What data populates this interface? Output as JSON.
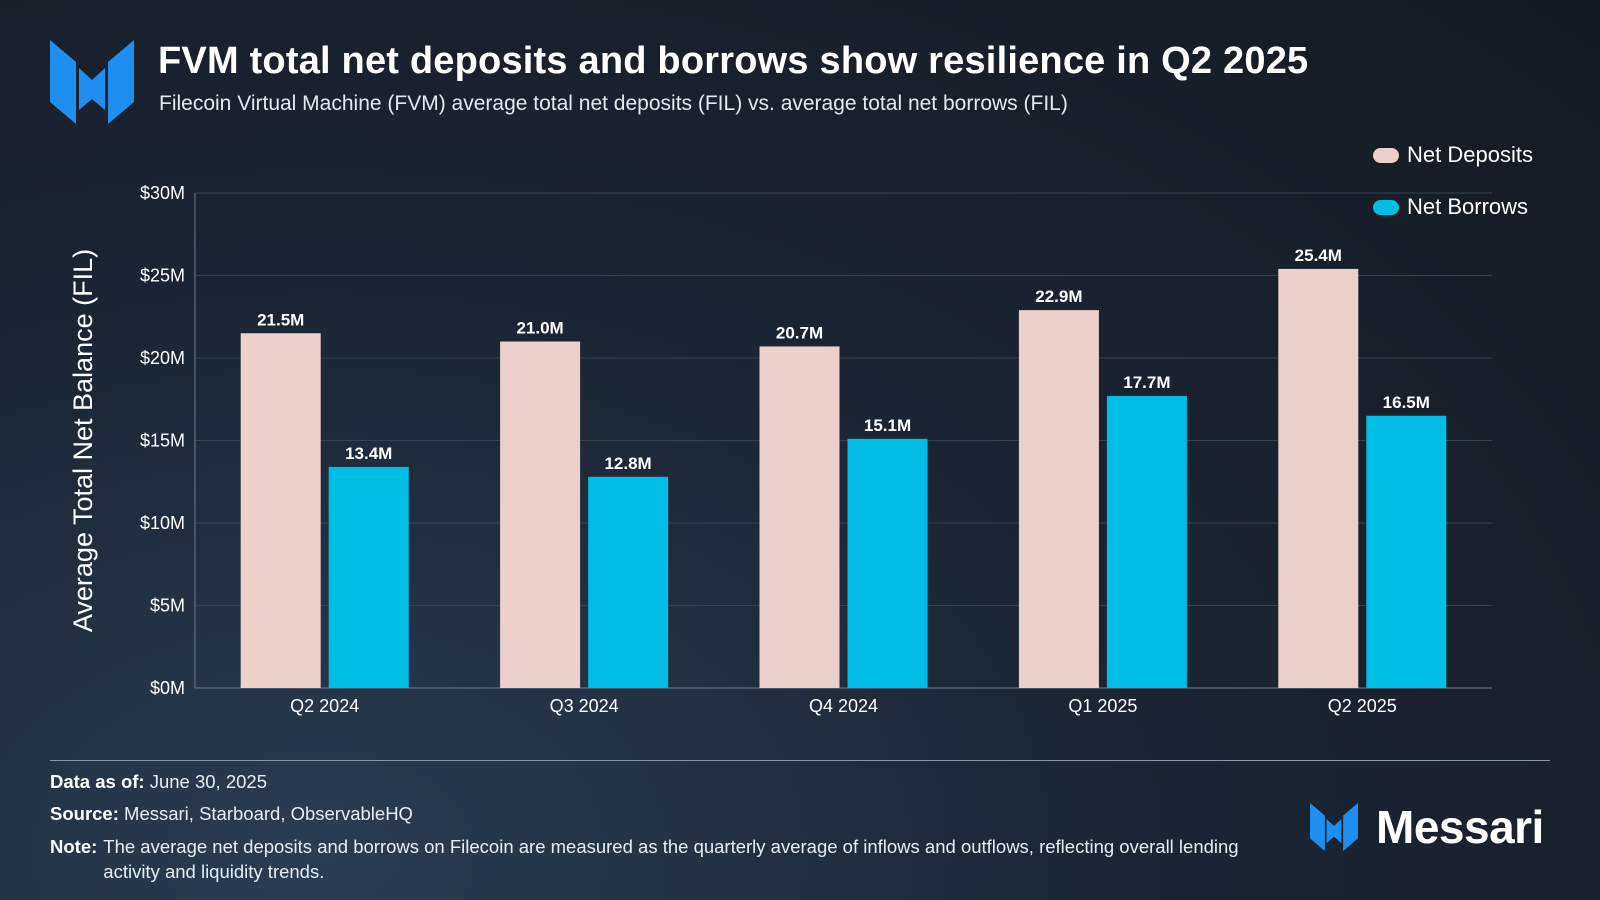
{
  "header": {
    "title": "FVM total net deposits and borrows show resilience in Q2 2025",
    "subtitle": "Filecoin Virtual Machine (FVM) average total net deposits (FIL) vs. average total net borrows (FIL)"
  },
  "legend": {
    "items": [
      {
        "label": "Net Deposits",
        "color": "#ecd0cb"
      },
      {
        "label": "Net Borrows",
        "color": "#00bde6"
      }
    ]
  },
  "colors": {
    "brand_blue": "#1f8ef1",
    "grid": "#37424f",
    "axis": "#6d7986"
  },
  "chart_data": {
    "type": "bar",
    "title": "FVM total net deposits and borrows show resilience in Q2 2025",
    "xlabel": "",
    "ylabel": "Average Total Net Balance (FIL)",
    "categories": [
      "Q2 2024",
      "Q3 2024",
      "Q4 2024",
      "Q1 2025",
      "Q2 2025"
    ],
    "series": [
      {
        "name": "Net Deposits",
        "values": [
          21.5,
          21.0,
          20.7,
          22.9,
          25.4
        ],
        "labels": [
          "21.5M",
          "21.0M",
          "20.7M",
          "22.9M",
          "25.4M"
        ],
        "color": "#ecd0cb"
      },
      {
        "name": "Net Borrows",
        "values": [
          13.4,
          12.8,
          15.1,
          17.7,
          16.5
        ],
        "labels": [
          "13.4M",
          "12.8M",
          "15.1M",
          "17.7M",
          "16.5M"
        ],
        "color": "#00bde6"
      }
    ],
    "ylim": [
      0,
      30
    ],
    "yticks": [
      0,
      5,
      10,
      15,
      20,
      25,
      30
    ],
    "ytick_labels": [
      "$0M",
      "$5M",
      "$10M",
      "$15M",
      "$20M",
      "$25M",
      "$30M"
    ],
    "grid": true,
    "legend_position": "top-right"
  },
  "footer": {
    "data_as_of_label": "Data as of:",
    "data_as_of_value": "June 30, 2025",
    "source_label": "Source:",
    "source_value": "Messari, Starboard, ObservableHQ",
    "note_label": "Note:",
    "note_value": "The average net deposits and borrows on Filecoin are measured as the quarterly average of inflows and outflows, reflecting overall lending activity and liquidity trends."
  },
  "brand": {
    "name": "Messari"
  }
}
